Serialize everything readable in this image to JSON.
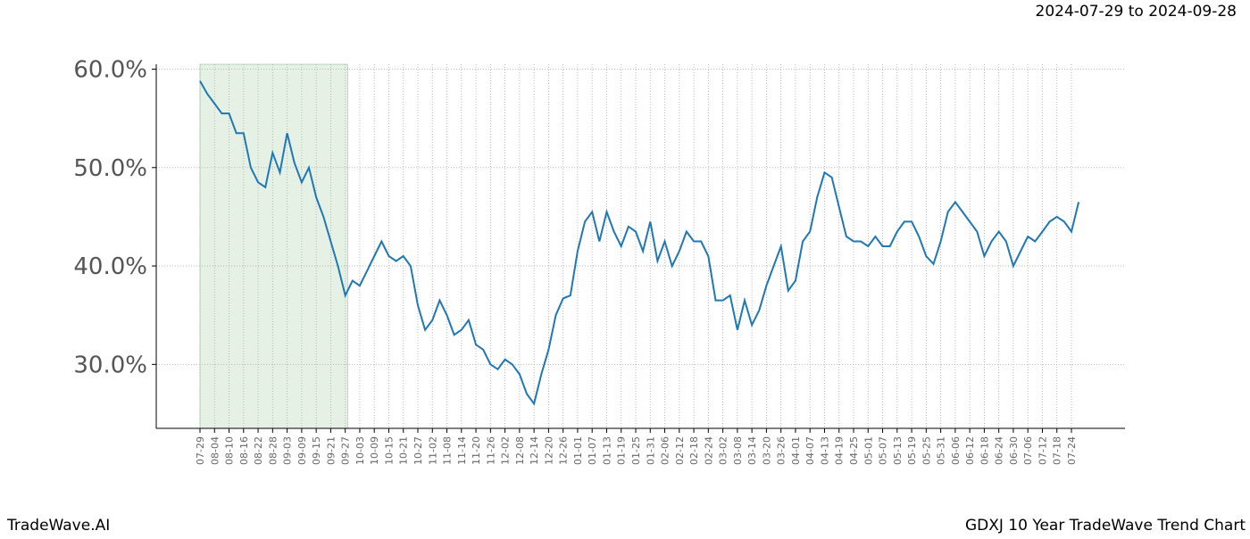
{
  "chart_data": {
    "type": "line",
    "title": "GDXJ 10 Year TradeWave Trend Chart",
    "subtitle": "2024-07-29 to 2024-09-28",
    "brand": "TradeWave.AI",
    "x": [
      "07-29",
      "08-01",
      "08-04",
      "08-07",
      "08-10",
      "08-13",
      "08-16",
      "08-19",
      "08-22",
      "08-25",
      "08-28",
      "08-31",
      "09-03",
      "09-06",
      "09-09",
      "09-12",
      "09-15",
      "09-18",
      "09-21",
      "09-24",
      "09-27",
      "09-30",
      "10-03",
      "10-06",
      "10-09",
      "10-12",
      "10-15",
      "10-18",
      "10-21",
      "10-24",
      "10-27",
      "10-30",
      "11-02",
      "11-05",
      "11-08",
      "11-11",
      "11-14",
      "11-17",
      "11-20",
      "11-23",
      "11-26",
      "11-29",
      "12-02",
      "12-05",
      "12-08",
      "12-11",
      "12-14",
      "12-17",
      "12-20",
      "12-23",
      "12-26",
      "12-29",
      "01-01",
      "01-04",
      "01-07",
      "01-10",
      "01-13",
      "01-16",
      "01-19",
      "01-22",
      "01-25",
      "01-28",
      "01-31",
      "02-03",
      "02-06",
      "02-09",
      "02-12",
      "02-15",
      "02-18",
      "02-21",
      "02-24",
      "02-27",
      "03-02",
      "03-05",
      "03-08",
      "03-11",
      "03-14",
      "03-17",
      "03-20",
      "03-23",
      "03-26",
      "03-29",
      "04-01",
      "04-04",
      "04-07",
      "04-10",
      "04-13",
      "04-16",
      "04-19",
      "04-22",
      "04-25",
      "04-28",
      "05-01",
      "05-04",
      "05-07",
      "05-10",
      "05-13",
      "05-16",
      "05-19",
      "05-22",
      "05-25",
      "05-28",
      "05-31",
      "06-03",
      "06-06",
      "06-09",
      "06-12",
      "06-15",
      "06-18",
      "06-21",
      "06-24",
      "06-27",
      "06-30",
      "07-03",
      "07-06",
      "07-09",
      "07-12",
      "07-15",
      "07-18",
      "07-21",
      "07-24",
      "07-27"
    ],
    "values": [
      58.8,
      57.5,
      56.5,
      55.5,
      55.5,
      53.5,
      53.5,
      50,
      48.5,
      48,
      51.5,
      49.5,
      53.5,
      50.5,
      48.5,
      50,
      47,
      45,
      42.5,
      40,
      37,
      38.5,
      38,
      39.5,
      41,
      42.5,
      41,
      40.5,
      41,
      40,
      36,
      33.5,
      34.5,
      36.5,
      35,
      33,
      33.5,
      34.5,
      32,
      31.5,
      30,
      29.5,
      30.5,
      30,
      29,
      27,
      26,
      29,
      31.5,
      35,
      36.7,
      37,
      41.5,
      44.5,
      45.5,
      42.5,
      45.5,
      43.5,
      42,
      44,
      43.5,
      41.5,
      44.5,
      40.5,
      42.5,
      40,
      41.5,
      43.5,
      42.5,
      42.5,
      41,
      36.5,
      36.5,
      37,
      33.5,
      36.5,
      34,
      35.5,
      38,
      40,
      42,
      37.5,
      38.5,
      42.5,
      43.5,
      47,
      49.5,
      49,
      46,
      43,
      42.5,
      42.5,
      42,
      43,
      42,
      42,
      43.5,
      44.5,
      44.5,
      43,
      41,
      40.2,
      42.5,
      45.5,
      46.5,
      45.5,
      44.5,
      43.5,
      41,
      42.5,
      43.5,
      42.5,
      40,
      41.5,
      43,
      42.5,
      43.5,
      44.5,
      45,
      44.5,
      43.5,
      46.5
    ],
    "color": "#1f77b4",
    "xticks": [
      "07-29",
      "08-04",
      "08-10",
      "08-16",
      "08-22",
      "08-28",
      "09-03",
      "09-09",
      "09-15",
      "09-21",
      "09-27",
      "10-03",
      "10-09",
      "10-15",
      "10-21",
      "10-27",
      "11-02",
      "11-08",
      "11-14",
      "11-20",
      "11-26",
      "12-02",
      "12-08",
      "12-14",
      "12-20",
      "12-26",
      "01-01",
      "01-07",
      "01-13",
      "01-19",
      "01-25",
      "01-31",
      "02-06",
      "02-12",
      "02-18",
      "02-24",
      "03-02",
      "03-08",
      "03-14",
      "03-20",
      "03-26",
      "04-01",
      "04-07",
      "04-13",
      "04-19",
      "04-25",
      "05-01",
      "05-07",
      "05-13",
      "05-19",
      "05-25",
      "05-31",
      "06-06",
      "06-12",
      "06-18",
      "06-24",
      "06-30",
      "07-06",
      "07-12",
      "07-18",
      "07-24"
    ],
    "ylim": [
      23.5,
      60.5
    ],
    "yticks": [
      {
        "value": 30,
        "label": "30.0%"
      },
      {
        "value": 40,
        "label": "40.0%"
      },
      {
        "value": 50,
        "label": "50.0%"
      },
      {
        "value": 60,
        "label": "60.0%"
      }
    ],
    "grid": true
  }
}
